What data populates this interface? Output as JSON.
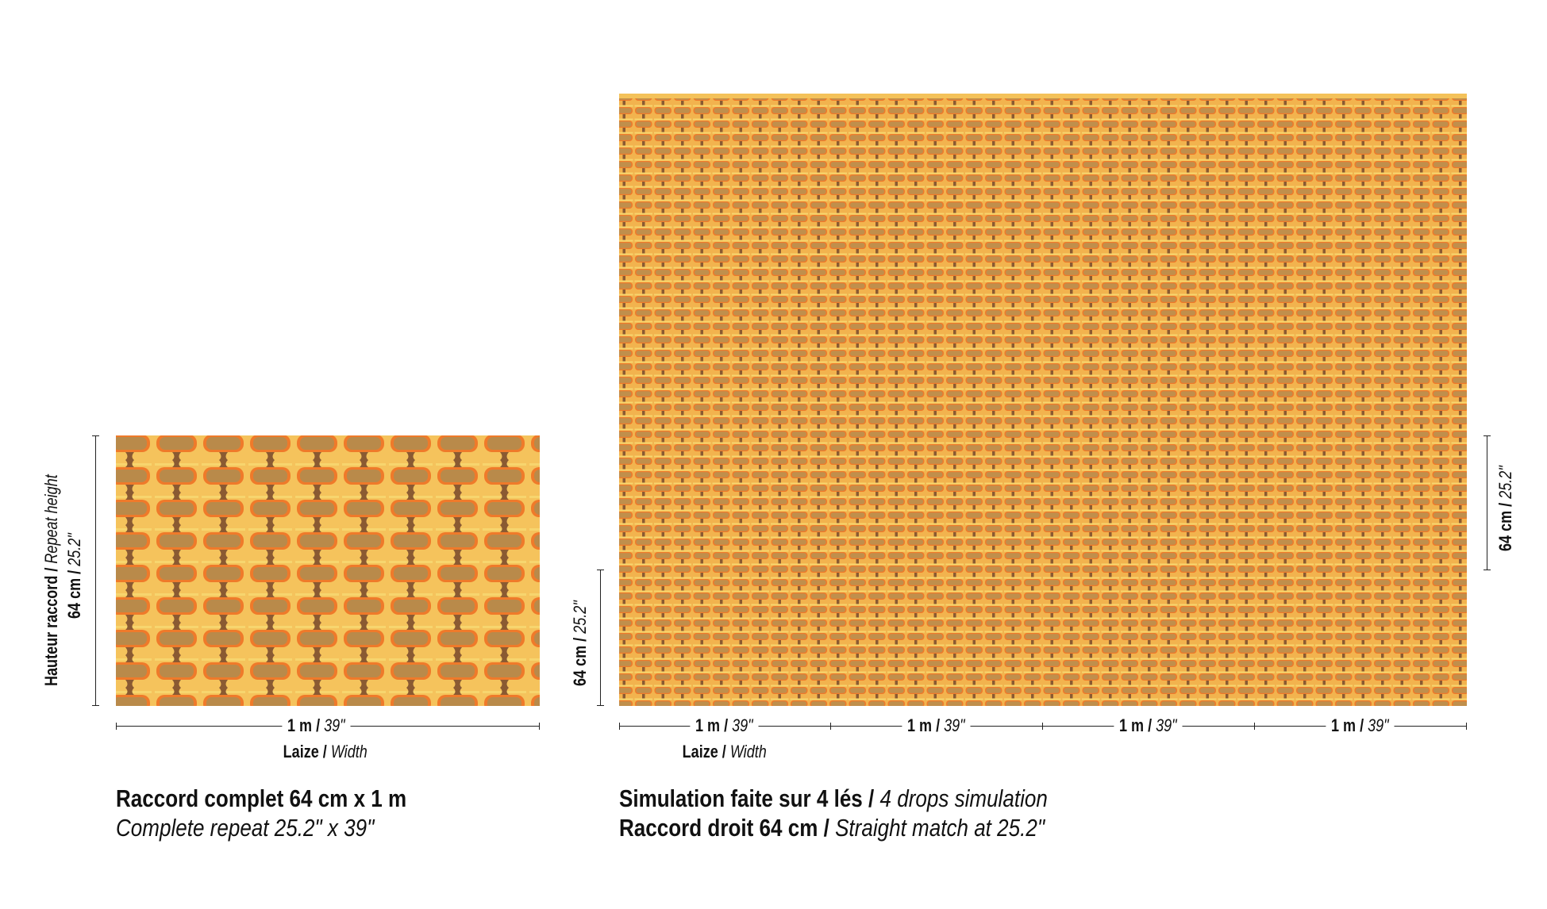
{
  "colors": {
    "pattern_bg": "#e9a24e",
    "pattern_brown": "#b98a4a",
    "pattern_yellow": "#f7d56e",
    "pattern_orange": "#ef7a2a",
    "pattern_dark": "#8a5a32"
  },
  "repeat_panel": {
    "height_label_fr": "Hauteur raccord",
    "height_label_en": "Repeat height",
    "height_value_cm": "64 cm",
    "height_value_in": "25.2\"",
    "width_value_m": "1 m",
    "width_value_in": "39\"",
    "width_label_fr": "Laize",
    "width_label_en": "Width",
    "caption_fr": "Raccord complet 64 cm x 1 m",
    "caption_en": "Complete repeat 25.2\" x 39\""
  },
  "simulation_panel": {
    "left_height_cm": "64 cm",
    "left_height_in": "25.2\"",
    "right_height_cm": "64 cm",
    "right_height_in": "25.2\"",
    "drops": [
      {
        "m": "1 m",
        "in": "39\""
      },
      {
        "m": "1 m",
        "in": "39\""
      },
      {
        "m": "1 m",
        "in": "39\""
      },
      {
        "m": "1 m",
        "in": "39\""
      }
    ],
    "width_label_fr": "Laize",
    "width_label_en": "Width",
    "caption1_fr": "Simulation faite sur 4 lés",
    "caption1_en": "4 drops simulation",
    "caption2_fr": "Raccord droit 64 cm",
    "caption2_en": "Straight match at 25.2\""
  }
}
